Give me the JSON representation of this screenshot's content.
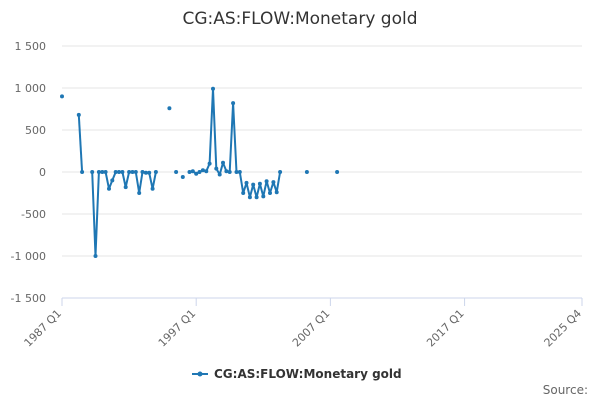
{
  "chart_data": {
    "type": "line",
    "title": "CG:AS:FLOW:Monetary gold",
    "xlabel": "",
    "ylabel": "",
    "ylim": [
      -1500,
      1500
    ],
    "yticks": [
      -1500,
      -1000,
      -500,
      0,
      500,
      1000,
      1500
    ],
    "ytick_labels": [
      "-1 500",
      "-1 000",
      "-500",
      "0",
      "500",
      "1 000",
      "1 500"
    ],
    "xlim": [
      "1987 Q1",
      "2025 Q4"
    ],
    "xtick_labels": [
      "1987 Q1",
      "1997 Q1",
      "2007 Q1",
      "2017 Q1",
      "2025 Q4"
    ],
    "grid": "horizontal",
    "legend_position": "bottom",
    "source_label": "Source:",
    "series": [
      {
        "name": "CG:AS:FLOW:Monetary gold",
        "color": "#1f77b4",
        "points": [
          [
            "1987 Q1",
            900
          ],
          [
            "1988 Q2",
            680
          ],
          [
            "1988 Q3",
            0
          ],
          [
            "1989 Q2",
            0
          ],
          [
            "1989 Q3",
            -1000
          ],
          [
            "1989 Q4",
            0
          ],
          [
            "1990 Q1",
            0
          ],
          [
            "1990 Q2",
            0
          ],
          [
            "1990 Q3",
            -200
          ],
          [
            "1990 Q4",
            -100
          ],
          [
            "1991 Q1",
            0
          ],
          [
            "1991 Q2",
            0
          ],
          [
            "1991 Q3",
            0
          ],
          [
            "1991 Q4",
            -180
          ],
          [
            "1992 Q1",
            0
          ],
          [
            "1992 Q2",
            0
          ],
          [
            "1992 Q3",
            0
          ],
          [
            "1992 Q4",
            -250
          ],
          [
            "1993 Q1",
            0
          ],
          [
            "1993 Q2",
            -10
          ],
          [
            "1993 Q3",
            -10
          ],
          [
            "1993 Q4",
            -200
          ],
          [
            "1994 Q1",
            0
          ],
          [
            "1995 Q1",
            760
          ],
          [
            "1995 Q3",
            0
          ],
          [
            "1996 Q1",
            -60
          ],
          [
            "1996 Q3",
            0
          ],
          [
            "1996 Q4",
            10
          ],
          [
            "1997 Q1",
            -20
          ],
          [
            "1997 Q2",
            0
          ],
          [
            "1997 Q3",
            20
          ],
          [
            "1997 Q4",
            10
          ],
          [
            "1998 Q1",
            100
          ],
          [
            "1998 Q2",
            990
          ],
          [
            "1998 Q3",
            40
          ],
          [
            "1998 Q4",
            -30
          ],
          [
            "1999 Q1",
            110
          ],
          [
            "1999 Q2",
            10
          ],
          [
            "1999 Q3",
            0
          ],
          [
            "1999 Q4",
            820
          ],
          [
            "2000 Q1",
            0
          ],
          [
            "2000 Q2",
            0
          ],
          [
            "2000 Q3",
            -250
          ],
          [
            "2000 Q4",
            -130
          ],
          [
            "2001 Q1",
            -300
          ],
          [
            "2001 Q2",
            -150
          ],
          [
            "2001 Q3",
            -300
          ],
          [
            "2001 Q4",
            -140
          ],
          [
            "2002 Q1",
            -290
          ],
          [
            "2002 Q2",
            -110
          ],
          [
            "2002 Q3",
            -250
          ],
          [
            "2002 Q4",
            -120
          ],
          [
            "2003 Q1",
            -240
          ],
          [
            "2003 Q2",
            0
          ],
          [
            "2005 Q2",
            0
          ],
          [
            "2007 Q3",
            0
          ]
        ],
        "segments": [
          [
            1,
            2
          ],
          [
            3,
            22
          ],
          [
            26,
            53
          ]
        ]
      }
    ]
  }
}
